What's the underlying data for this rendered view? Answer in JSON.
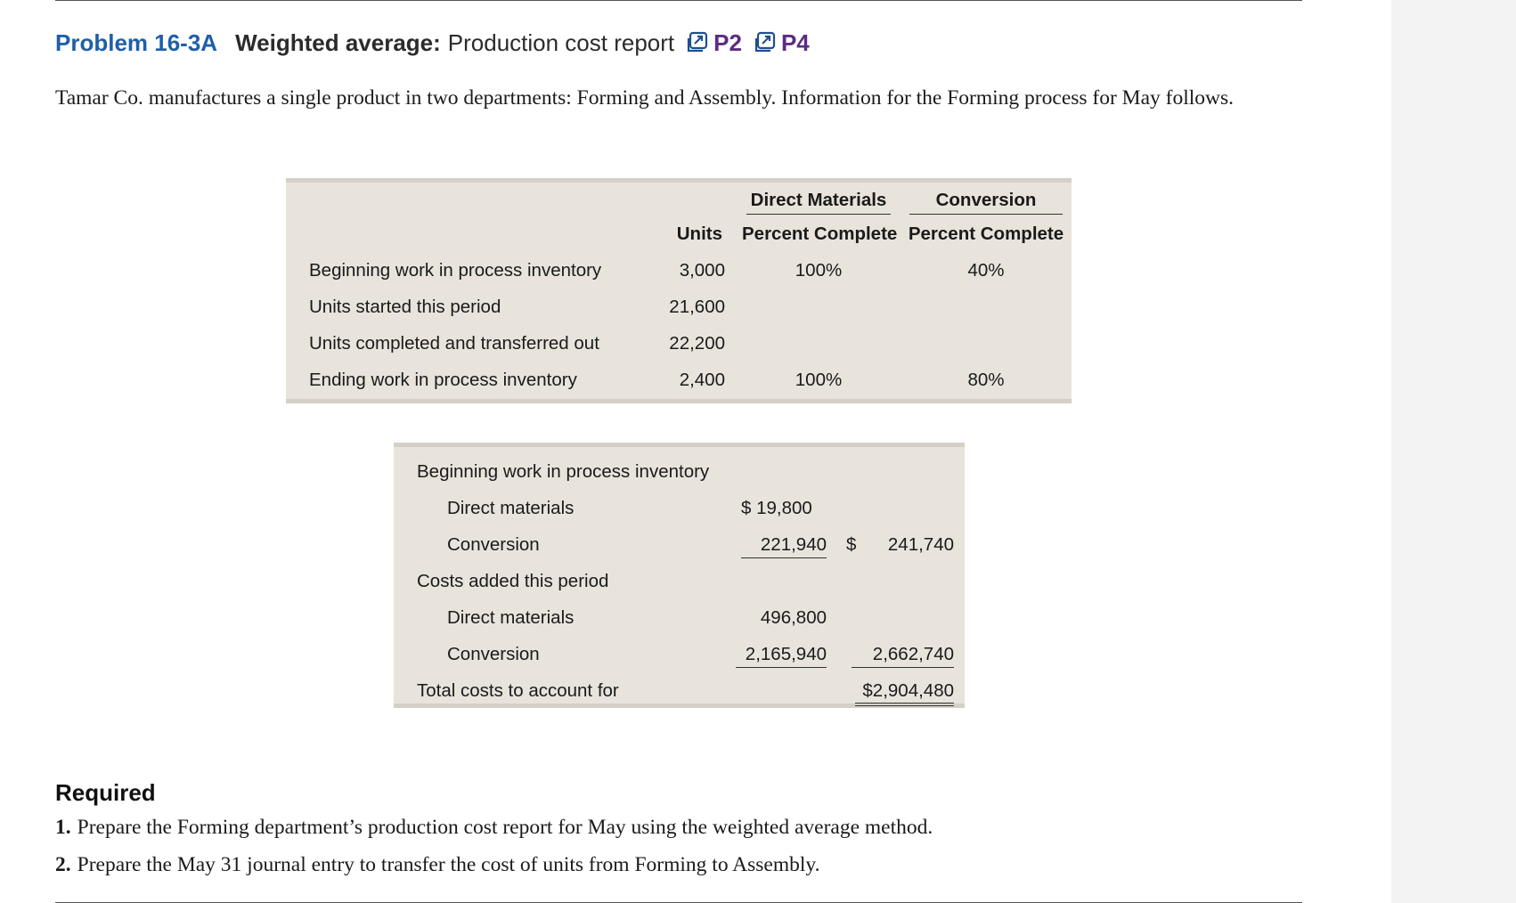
{
  "heading": {
    "problem_number": "Problem 16-3A",
    "title_bold": "Weighted average:",
    "title": "Production cost report",
    "objectives": [
      "P2",
      "P4"
    ]
  },
  "intro": "Tamar Co. manufactures a single product in two departments: Forming and Assembly. Information for the Forming process for May follows.",
  "units_table": {
    "col_headers": {
      "units": "Units",
      "dm_line1": "Direct Materials",
      "dm_line2": "Percent Complete",
      "conv_line1": "Conversion",
      "conv_line2": "Percent Complete"
    },
    "rows": [
      {
        "label": "Beginning work in process inventory",
        "units": "3,000",
        "dm": "100%",
        "conv": "40%"
      },
      {
        "label": "Units started this period",
        "units": "21,600",
        "dm": "",
        "conv": ""
      },
      {
        "label": "Units completed and transferred out",
        "units": "22,200",
        "dm": "",
        "conv": ""
      },
      {
        "label": "Ending work in process inventory",
        "units": "2,400",
        "dm": "100%",
        "conv": "80%"
      }
    ]
  },
  "cost_table": {
    "beginning_label": "Beginning work in process inventory",
    "beg_dm_label": "Direct materials",
    "beg_dm_value": "$ 19,800",
    "beg_conv_label": "Conversion",
    "beg_conv_value": "221,940",
    "beg_total_dollar": "$",
    "beg_total": "241,740",
    "added_label": "Costs added this period",
    "add_dm_label": "Direct materials",
    "add_dm_value": "496,800",
    "add_conv_label": "Conversion",
    "add_conv_value": "2,165,940",
    "added_total": "2,662,740",
    "total_label": "Total costs to account for",
    "grand_total": "$2,904,480"
  },
  "required": {
    "title": "Required",
    "items": [
      {
        "num": "1.",
        "text": "Prepare the Forming department’s production cost report for May using the weighted average method."
      },
      {
        "num": "2.",
        "text": "Prepare the May 31 journal entry to transfer the cost of units from Forming to Assembly."
      }
    ]
  }
}
